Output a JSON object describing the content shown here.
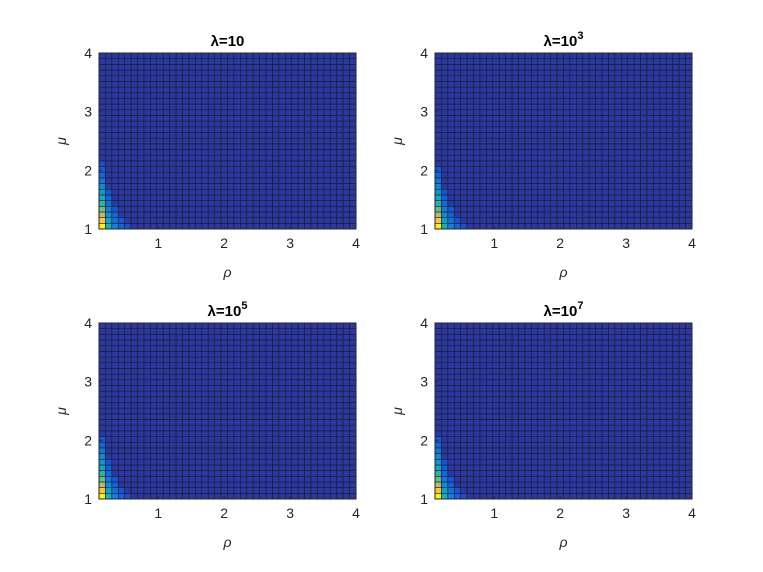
{
  "chart_data": [
    {
      "type": "heatmap",
      "title": "λ=10",
      "title_base": "λ=10",
      "title_exp": "",
      "xlabel": "ρ",
      "ylabel": "μ",
      "xlim": [
        0.1,
        4
      ],
      "ylim": [
        1,
        4
      ],
      "xticks": [
        1,
        2,
        3,
        4
      ],
      "yticks": [
        1,
        2,
        3,
        4
      ],
      "grid_columns": 40,
      "grid_rows": 31,
      "colormap": "parula",
      "notes": "Values are near minimum (dark blue) everywhere except a small high-value region at the lower-left corner (small ρ, μ near 1).",
      "hot_cells": [
        {
          "x": 0.1,
          "y": 1.0,
          "level": 0.98
        },
        {
          "x": 0.1,
          "y": 1.1,
          "level": 0.88
        },
        {
          "x": 0.1,
          "y": 1.2,
          "level": 0.72
        },
        {
          "x": 0.1,
          "y": 1.3,
          "level": 0.6
        },
        {
          "x": 0.1,
          "y": 1.4,
          "level": 0.5
        },
        {
          "x": 0.1,
          "y": 1.5,
          "level": 0.42
        },
        {
          "x": 0.1,
          "y": 1.6,
          "level": 0.35
        },
        {
          "x": 0.1,
          "y": 1.7,
          "level": 0.28
        },
        {
          "x": 0.1,
          "y": 1.8,
          "level": 0.22
        },
        {
          "x": 0.1,
          "y": 1.9,
          "level": 0.17
        },
        {
          "x": 0.1,
          "y": 2.0,
          "level": 0.13
        },
        {
          "x": 0.1,
          "y": 2.1,
          "level": 0.1
        },
        {
          "x": 0.2,
          "y": 1.0,
          "level": 0.45
        },
        {
          "x": 0.2,
          "y": 1.1,
          "level": 0.38
        },
        {
          "x": 0.2,
          "y": 1.2,
          "level": 0.3
        },
        {
          "x": 0.2,
          "y": 1.3,
          "level": 0.24
        },
        {
          "x": 0.2,
          "y": 1.4,
          "level": 0.19
        },
        {
          "x": 0.2,
          "y": 1.5,
          "level": 0.15
        },
        {
          "x": 0.2,
          "y": 1.6,
          "level": 0.12
        },
        {
          "x": 0.3,
          "y": 1.0,
          "level": 0.25
        },
        {
          "x": 0.3,
          "y": 1.1,
          "level": 0.2
        },
        {
          "x": 0.3,
          "y": 1.2,
          "level": 0.16
        },
        {
          "x": 0.3,
          "y": 1.3,
          "level": 0.12
        },
        {
          "x": 0.4,
          "y": 1.0,
          "level": 0.15
        },
        {
          "x": 0.4,
          "y": 1.1,
          "level": 0.12
        },
        {
          "x": 0.5,
          "y": 1.0,
          "level": 0.1
        }
      ]
    },
    {
      "type": "heatmap",
      "title": "λ=10^3",
      "title_base": "λ=10",
      "title_exp": "3",
      "xlabel": "ρ",
      "ylabel": "μ",
      "xlim": [
        0.1,
        4
      ],
      "ylim": [
        1,
        4
      ],
      "xticks": [
        1,
        2,
        3,
        4
      ],
      "yticks": [
        1,
        2,
        3,
        4
      ],
      "grid_columns": 40,
      "grid_rows": 31,
      "colormap": "parula",
      "hot_cells": [
        {
          "x": 0.1,
          "y": 1.0,
          "level": 0.98
        },
        {
          "x": 0.1,
          "y": 1.1,
          "level": 0.86
        },
        {
          "x": 0.1,
          "y": 1.2,
          "level": 0.7
        },
        {
          "x": 0.1,
          "y": 1.3,
          "level": 0.58
        },
        {
          "x": 0.1,
          "y": 1.4,
          "level": 0.48
        },
        {
          "x": 0.1,
          "y": 1.5,
          "level": 0.4
        },
        {
          "x": 0.1,
          "y": 1.6,
          "level": 0.33
        },
        {
          "x": 0.1,
          "y": 1.7,
          "level": 0.27
        },
        {
          "x": 0.1,
          "y": 1.8,
          "level": 0.21
        },
        {
          "x": 0.1,
          "y": 1.9,
          "level": 0.16
        },
        {
          "x": 0.1,
          "y": 2.0,
          "level": 0.12
        },
        {
          "x": 0.2,
          "y": 1.0,
          "level": 0.45
        },
        {
          "x": 0.2,
          "y": 1.1,
          "level": 0.37
        },
        {
          "x": 0.2,
          "y": 1.2,
          "level": 0.29
        },
        {
          "x": 0.2,
          "y": 1.3,
          "level": 0.23
        },
        {
          "x": 0.2,
          "y": 1.4,
          "level": 0.18
        },
        {
          "x": 0.2,
          "y": 1.5,
          "level": 0.14
        },
        {
          "x": 0.2,
          "y": 1.6,
          "level": 0.11
        },
        {
          "x": 0.3,
          "y": 1.0,
          "level": 0.25
        },
        {
          "x": 0.3,
          "y": 1.1,
          "level": 0.2
        },
        {
          "x": 0.3,
          "y": 1.2,
          "level": 0.15
        },
        {
          "x": 0.3,
          "y": 1.3,
          "level": 0.12
        },
        {
          "x": 0.4,
          "y": 1.0,
          "level": 0.15
        },
        {
          "x": 0.4,
          "y": 1.1,
          "level": 0.11
        },
        {
          "x": 0.5,
          "y": 1.0,
          "level": 0.1
        }
      ]
    },
    {
      "type": "heatmap",
      "title": "λ=10^5",
      "title_base": "λ=10",
      "title_exp": "5",
      "xlabel": "ρ",
      "ylabel": "μ",
      "xlim": [
        0.1,
        4
      ],
      "ylim": [
        1,
        4
      ],
      "xticks": [
        1,
        2,
        3,
        4
      ],
      "yticks": [
        1,
        2,
        3,
        4
      ],
      "grid_columns": 40,
      "grid_rows": 31,
      "colormap": "parula",
      "hot_cells": [
        {
          "x": 0.1,
          "y": 1.0,
          "level": 0.98
        },
        {
          "x": 0.1,
          "y": 1.1,
          "level": 0.86
        },
        {
          "x": 0.1,
          "y": 1.2,
          "level": 0.7
        },
        {
          "x": 0.1,
          "y": 1.3,
          "level": 0.58
        },
        {
          "x": 0.1,
          "y": 1.4,
          "level": 0.48
        },
        {
          "x": 0.1,
          "y": 1.5,
          "level": 0.4
        },
        {
          "x": 0.1,
          "y": 1.6,
          "level": 0.33
        },
        {
          "x": 0.1,
          "y": 1.7,
          "level": 0.27
        },
        {
          "x": 0.1,
          "y": 1.8,
          "level": 0.21
        },
        {
          "x": 0.1,
          "y": 1.9,
          "level": 0.16
        },
        {
          "x": 0.1,
          "y": 2.0,
          "level": 0.12
        },
        {
          "x": 0.2,
          "y": 1.0,
          "level": 0.45
        },
        {
          "x": 0.2,
          "y": 1.1,
          "level": 0.37
        },
        {
          "x": 0.2,
          "y": 1.2,
          "level": 0.29
        },
        {
          "x": 0.2,
          "y": 1.3,
          "level": 0.23
        },
        {
          "x": 0.2,
          "y": 1.4,
          "level": 0.18
        },
        {
          "x": 0.2,
          "y": 1.5,
          "level": 0.14
        },
        {
          "x": 0.2,
          "y": 1.6,
          "level": 0.11
        },
        {
          "x": 0.3,
          "y": 1.0,
          "level": 0.25
        },
        {
          "x": 0.3,
          "y": 1.1,
          "level": 0.2
        },
        {
          "x": 0.3,
          "y": 1.2,
          "level": 0.15
        },
        {
          "x": 0.3,
          "y": 1.3,
          "level": 0.12
        },
        {
          "x": 0.4,
          "y": 1.0,
          "level": 0.15
        },
        {
          "x": 0.4,
          "y": 1.1,
          "level": 0.11
        },
        {
          "x": 0.5,
          "y": 1.0,
          "level": 0.1
        }
      ]
    },
    {
      "type": "heatmap",
      "title": "λ=10^7",
      "title_base": "λ=10",
      "title_exp": "7",
      "xlabel": "ρ",
      "ylabel": "μ",
      "xlim": [
        0.1,
        4
      ],
      "ylim": [
        1,
        4
      ],
      "xticks": [
        1,
        2,
        3,
        4
      ],
      "yticks": [
        1,
        2,
        3,
        4
      ],
      "grid_columns": 40,
      "grid_rows": 31,
      "colormap": "parula",
      "hot_cells": [
        {
          "x": 0.1,
          "y": 1.0,
          "level": 0.98
        },
        {
          "x": 0.1,
          "y": 1.1,
          "level": 0.86
        },
        {
          "x": 0.1,
          "y": 1.2,
          "level": 0.7
        },
        {
          "x": 0.1,
          "y": 1.3,
          "level": 0.58
        },
        {
          "x": 0.1,
          "y": 1.4,
          "level": 0.48
        },
        {
          "x": 0.1,
          "y": 1.5,
          "level": 0.4
        },
        {
          "x": 0.1,
          "y": 1.6,
          "level": 0.33
        },
        {
          "x": 0.1,
          "y": 1.7,
          "level": 0.27
        },
        {
          "x": 0.1,
          "y": 1.8,
          "level": 0.21
        },
        {
          "x": 0.1,
          "y": 1.9,
          "level": 0.16
        },
        {
          "x": 0.1,
          "y": 2.0,
          "level": 0.12
        },
        {
          "x": 0.2,
          "y": 1.0,
          "level": 0.45
        },
        {
          "x": 0.2,
          "y": 1.1,
          "level": 0.37
        },
        {
          "x": 0.2,
          "y": 1.2,
          "level": 0.29
        },
        {
          "x": 0.2,
          "y": 1.3,
          "level": 0.23
        },
        {
          "x": 0.2,
          "y": 1.4,
          "level": 0.18
        },
        {
          "x": 0.2,
          "y": 1.5,
          "level": 0.14
        },
        {
          "x": 0.2,
          "y": 1.6,
          "level": 0.11
        },
        {
          "x": 0.3,
          "y": 1.0,
          "level": 0.25
        },
        {
          "x": 0.3,
          "y": 1.1,
          "level": 0.2
        },
        {
          "x": 0.3,
          "y": 1.2,
          "level": 0.15
        },
        {
          "x": 0.3,
          "y": 1.3,
          "level": 0.12
        },
        {
          "x": 0.4,
          "y": 1.0,
          "level": 0.15
        },
        {
          "x": 0.4,
          "y": 1.1,
          "level": 0.11
        },
        {
          "x": 0.5,
          "y": 1.0,
          "level": 0.1
        }
      ]
    }
  ],
  "colors": {
    "colormap_stops": [
      "#352a87",
      "#0f5cdd",
      "#1481d6",
      "#06a4ca",
      "#2eb7a4",
      "#87bf77",
      "#d1bb59",
      "#fec832",
      "#f9fb0e"
    ],
    "grid_line": "#1a1a2e",
    "axis": "#262626"
  }
}
